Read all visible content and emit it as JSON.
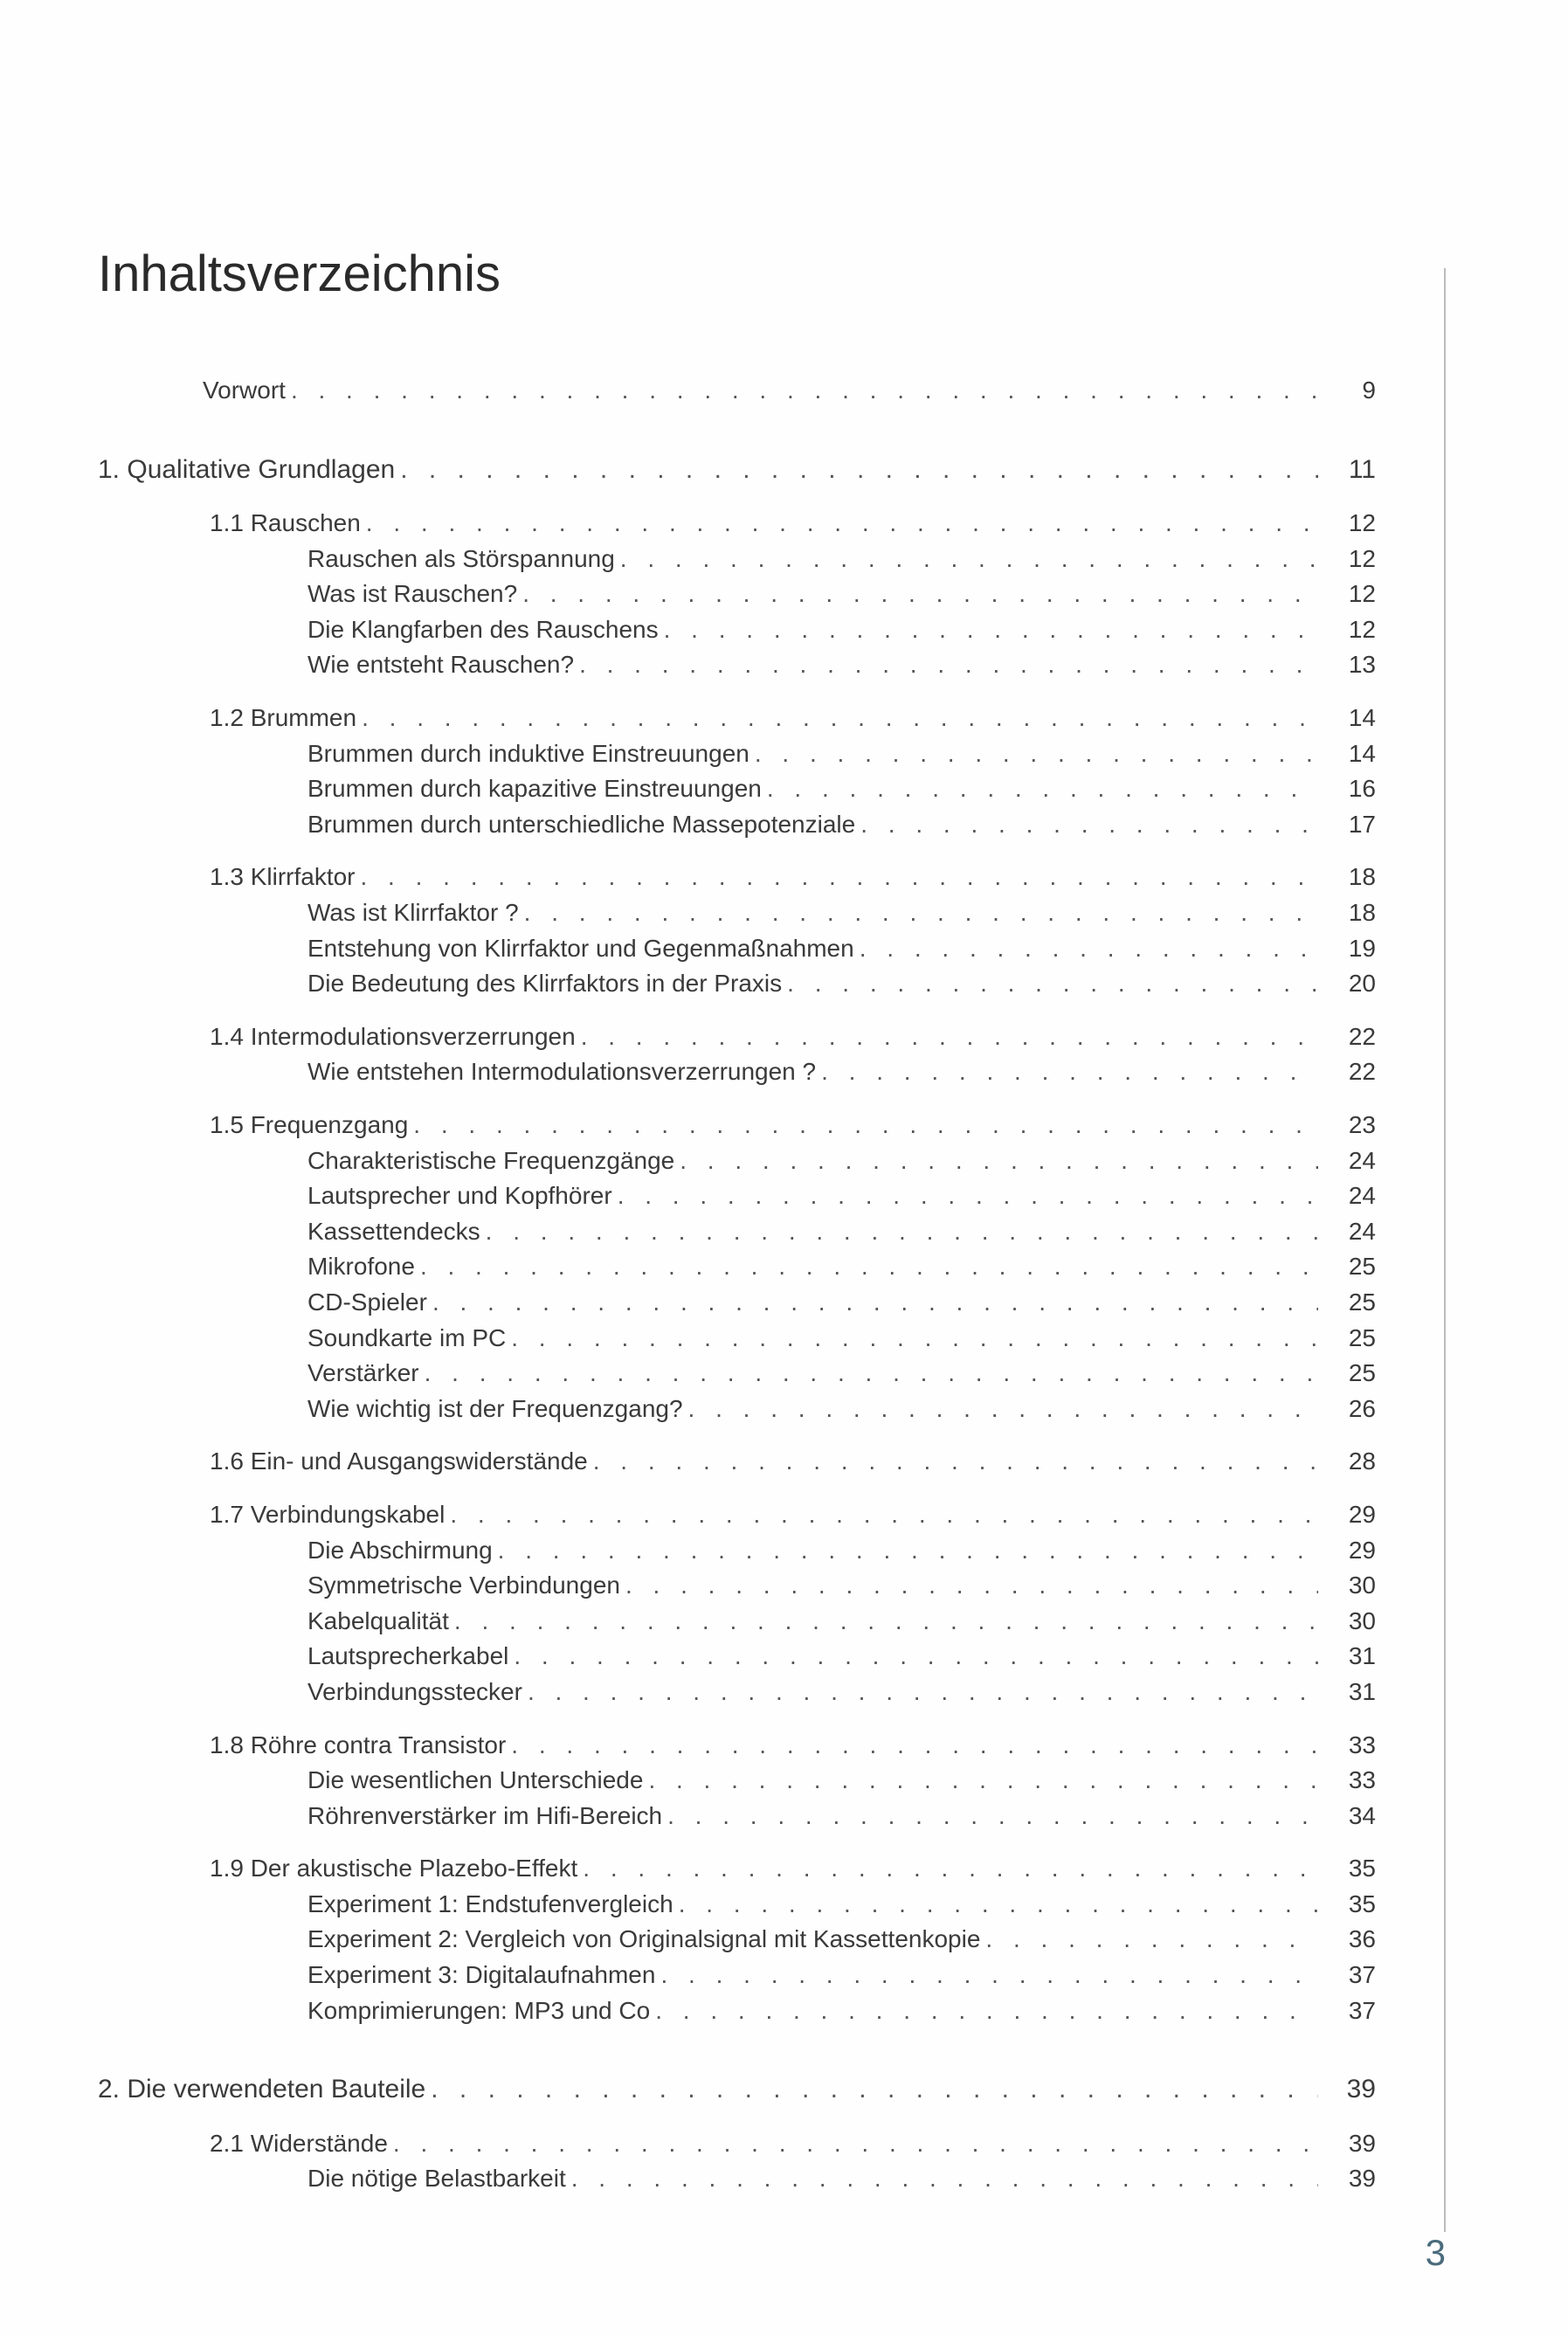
{
  "title": "Inhaltsverzeichnis",
  "page_number": "3",
  "entries": [
    {
      "label": "Vorwort",
      "page": "9",
      "level": 0
    },
    {
      "label": "1. Qualitative Grundlagen",
      "page": "11",
      "level": 1
    },
    {
      "label": "1.1 Rauschen",
      "page": "12",
      "level": 2
    },
    {
      "label": "Rauschen als Störspannung",
      "page": "12",
      "level": 3
    },
    {
      "label": "Was ist Rauschen?",
      "page": "12",
      "level": 3
    },
    {
      "label": "Die Klangfarben des Rauschens",
      "page": "12",
      "level": 3
    },
    {
      "label": "Wie entsteht Rauschen?",
      "page": "13",
      "level": 3
    },
    {
      "label": "1.2 Brummen",
      "page": "14",
      "level": 2
    },
    {
      "label": "Brummen durch induktive Einstreuungen",
      "page": "14",
      "level": 3
    },
    {
      "label": "Brummen durch kapazitive Einstreuungen",
      "page": "16",
      "level": 3
    },
    {
      "label": "Brummen durch unterschiedliche Massepotenziale",
      "page": "17",
      "level": 3
    },
    {
      "label": "1.3 Klirrfaktor",
      "page": "18",
      "level": 2
    },
    {
      "label": "Was ist Klirrfaktor ?",
      "page": "18",
      "level": 3
    },
    {
      "label": "Entstehung von Klirrfaktor und Gegenmaßnahmen",
      "page": "19",
      "level": 3
    },
    {
      "label": "Die Bedeutung des Klirrfaktors in der Praxis",
      "page": "20",
      "level": 3
    },
    {
      "label": "1.4 Intermodulationsverzerrungen",
      "page": "22",
      "level": 2
    },
    {
      "label": "Wie entstehen Intermodulationsverzerrungen ?",
      "page": "22",
      "level": 3
    },
    {
      "label": "1.5 Frequenzgang",
      "page": "23",
      "level": 2
    },
    {
      "label": "Charakteristische Frequenzgänge",
      "page": "24",
      "level": 3
    },
    {
      "label": "Lautsprecher und Kopfhörer",
      "page": "24",
      "level": 3
    },
    {
      "label": "Kassettendecks",
      "page": "24",
      "level": 3
    },
    {
      "label": "Mikrofone",
      "page": "25",
      "level": 3
    },
    {
      "label": "CD-Spieler",
      "page": "25",
      "level": 3
    },
    {
      "label": "Soundkarte im PC",
      "page": "25",
      "level": 3
    },
    {
      "label": "Verstärker",
      "page": "25",
      "level": 3
    },
    {
      "label": "Wie wichtig ist der Frequenzgang?",
      "page": "26",
      "level": 3
    },
    {
      "label": "1.6 Ein- und Ausgangswiderstände",
      "page": "28",
      "level": 2
    },
    {
      "label": "1.7 Verbindungskabel",
      "page": "29",
      "level": 2
    },
    {
      "label": "Die Abschirmung",
      "page": "29",
      "level": 3
    },
    {
      "label": "Symmetrische Verbindungen",
      "page": "30",
      "level": 3
    },
    {
      "label": "Kabelqualität",
      "page": "30",
      "level": 3
    },
    {
      "label": "Lautsprecherkabel",
      "page": "31",
      "level": 3
    },
    {
      "label": "Verbindungsstecker",
      "page": "31",
      "level": 3
    },
    {
      "label": "1.8 Röhre contra Transistor",
      "page": "33",
      "level": 2
    },
    {
      "label": "Die wesentlichen Unterschiede",
      "page": "33",
      "level": 3
    },
    {
      "label": "Röhrenverstärker im Hifi-Bereich",
      "page": "34",
      "level": 3
    },
    {
      "label": "1.9 Der akustische Plazebo-Effekt",
      "page": "35",
      "level": 2
    },
    {
      "label": "Experiment 1: Endstufenvergleich",
      "page": "35",
      "level": 3
    },
    {
      "label": "Experiment 2: Vergleich von Originalsignal mit Kassettenkopie",
      "page": "36",
      "level": 3
    },
    {
      "label": "Experiment 3: Digitalaufnahmen",
      "page": "37",
      "level": 3
    },
    {
      "label": "Komprimierungen: MP3 und Co",
      "page": "37",
      "level": 3
    },
    {
      "label": "2. Die verwendeten Bauteile",
      "page": "39",
      "level": 1
    },
    {
      "label": "2.1 Widerstände",
      "page": "39",
      "level": 2
    },
    {
      "label": "Die nötige Belastbarkeit",
      "page": "39",
      "level": 3
    }
  ]
}
